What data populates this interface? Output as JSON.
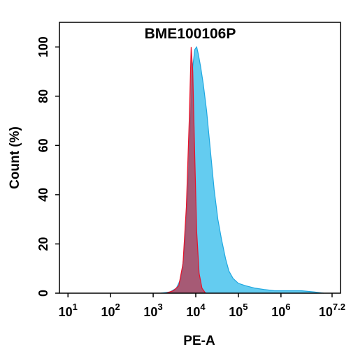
{
  "chart_data": {
    "type": "histogram-overlay",
    "title": "BME100106P",
    "x_label": "PE-A",
    "y_label": "Count  (%)",
    "xscale": "log",
    "xlim": [
      6.3,
      25000000
    ],
    "ylim": [
      0,
      110
    ],
    "xticks": [
      {
        "value": 10,
        "label": "10",
        "exponent": "1"
      },
      {
        "value": 100,
        "label": "10",
        "exponent": "2"
      },
      {
        "value": 1000,
        "label": "10",
        "exponent": "3"
      },
      {
        "value": 10000,
        "label": "10",
        "exponent": "4"
      },
      {
        "value": 100000,
        "label": "10",
        "exponent": "5"
      },
      {
        "value": 1000000,
        "label": "10",
        "exponent": "6"
      },
      {
        "value": 15848932,
        "label": "10",
        "exponent": "7.2"
      }
    ],
    "yticks": [
      0,
      20,
      40,
      60,
      80,
      100
    ],
    "series": [
      {
        "color": "#5cc9ef",
        "stroke": "#1fa7e0",
        "x": [
          1500,
          2500,
          3500,
          4500,
          5500,
          6500,
          7500,
          8500,
          9500,
          10500,
          11500,
          13000,
          15000,
          18000,
          22000,
          27000,
          33000,
          40000,
          50000,
          60000,
          75000,
          100000,
          150000,
          250000,
          400000,
          700000,
          1500000,
          3000000,
          6000000,
          10000000
        ],
        "values": [
          0,
          0.5,
          2,
          6,
          18,
          40,
          70,
          92,
          99,
          100,
          97,
          92,
          85,
          74,
          58,
          42,
          30,
          22,
          14,
          9,
          6,
          4,
          3,
          2,
          1.5,
          1,
          1,
          1,
          0.5,
          0
        ]
      },
      {
        "color": "#b2455f",
        "stroke": "#e8122a",
        "x": [
          2000,
          3000,
          4000,
          5000,
          6000,
          7000,
          7800,
          8500,
          9500,
          10500,
          12000,
          14000,
          17000
        ],
        "values": [
          0,
          1,
          3,
          12,
          35,
          70,
          100,
          90,
          55,
          25,
          8,
          2,
          0
        ]
      }
    ]
  }
}
